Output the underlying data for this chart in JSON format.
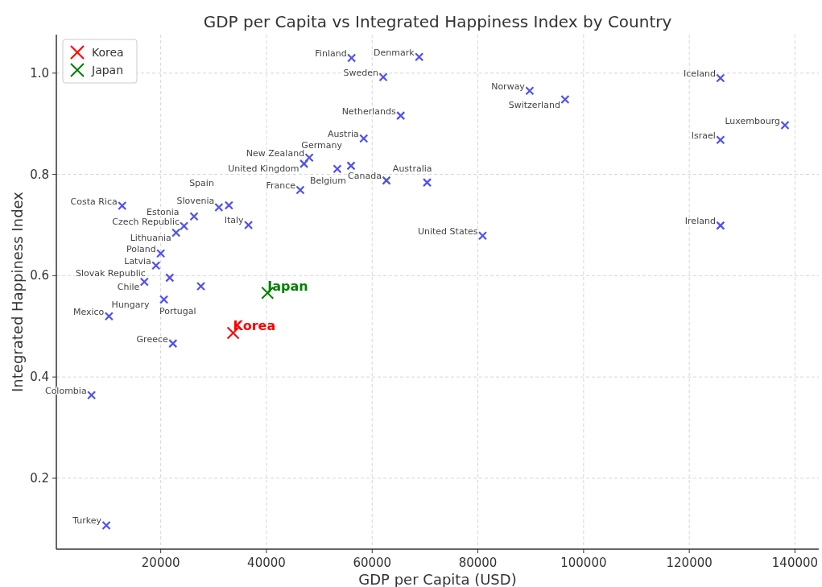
{
  "chart_data": {
    "type": "scatter",
    "title": "GDP per Capita vs Integrated Happiness Index by Country",
    "xlabel": "GDP per Capita (USD)",
    "ylabel": "Integrated Happiness Index",
    "xlim": [
      250,
      144500
    ],
    "ylim": [
      0.06,
      1.076
    ],
    "xticks": [
      20000,
      40000,
      60000,
      80000,
      100000,
      120000,
      140000
    ],
    "yticks": [
      {
        "value": 0.2,
        "label": "0.2"
      },
      {
        "value": 0.4,
        "label": "0.4"
      },
      {
        "value": 0.6,
        "label": "0.6"
      },
      {
        "value": 0.8,
        "label": "0.8"
      },
      {
        "value": 1.0,
        "label": "1.0"
      }
    ],
    "grid": true,
    "legend": "top left",
    "marker": "cross",
    "series": [
      {
        "color": "#5050f0",
        "x": [
          56100,
          68900,
          62100,
          65400,
          58400,
          48100,
          47100,
          53400,
          56000,
          62700,
          70400,
          46400,
          89800,
          96500,
          80900,
          125900,
          138100,
          125900,
          125900,
          12700,
          32900,
          31000,
          26300,
          24400,
          22900,
          36600,
          20000,
          19100,
          21700,
          16900,
          27600,
          20600,
          10200,
          22300,
          6900,
          9700
        ],
        "values": [
          1.03,
          1.032,
          0.992,
          0.916,
          0.871,
          0.833,
          0.821,
          0.811,
          0.817,
          0.788,
          0.784,
          0.769,
          0.965,
          0.948,
          0.679,
          0.99,
          0.897,
          0.868,
          0.699,
          0.738,
          0.739,
          0.735,
          0.717,
          0.698,
          0.685,
          0.7,
          0.644,
          0.62,
          0.596,
          0.588,
          0.579,
          0.553,
          0.52,
          0.466,
          0.364,
          0.107
        ]
      },
      {
        "name": "Korea",
        "color": "#ff0000",
        "x": [
          33700
        ],
        "values": [
          0.487
        ]
      },
      {
        "name": "Japan",
        "color": "#008000",
        "x": [
          40200
        ],
        "values": [
          0.566
        ]
      }
    ],
    "annotations": [
      {
        "text": "Finland",
        "x": 56100,
        "y": 1.03
      },
      {
        "text": "Denmark",
        "x": 68900,
        "y": 1.032
      },
      {
        "text": "Sweden",
        "x": 62100,
        "y": 0.992
      },
      {
        "text": "Netherlands",
        "x": 65400,
        "y": 0.916
      },
      {
        "text": "Austria",
        "x": 58400,
        "y": 0.871
      },
      {
        "text": "New Zealand",
        "x": 48100,
        "y": 0.833
      },
      {
        "text": "United Kingdom",
        "x": 47100,
        "y": 0.821
      },
      {
        "text": "Germany",
        "x": 53400,
        "y": 0.811
      },
      {
        "text": "Belgium",
        "x": 56000,
        "y": 0.817
      },
      {
        "text": "Canada",
        "x": 62700,
        "y": 0.788
      },
      {
        "text": "Australia",
        "x": 70400,
        "y": 0.784
      },
      {
        "text": "France",
        "x": 46400,
        "y": 0.769
      },
      {
        "text": "Norway",
        "x": 89800,
        "y": 0.965
      },
      {
        "text": "Switzerland",
        "x": 96500,
        "y": 0.948
      },
      {
        "text": "United States",
        "x": 80900,
        "y": 0.679
      },
      {
        "text": "Iceland",
        "x": 125900,
        "y": 0.99
      },
      {
        "text": "Luxembourg",
        "x": 138100,
        "y": 0.897
      },
      {
        "text": "Israel",
        "x": 125900,
        "y": 0.868
      },
      {
        "text": "Ireland",
        "x": 125900,
        "y": 0.699
      },
      {
        "text": "Costa Rica",
        "x": 12700,
        "y": 0.738
      },
      {
        "text": "Slovenia",
        "x": 32900,
        "y": 0.739
      },
      {
        "text": "Spain",
        "x": 31000,
        "y": 0.735
      },
      {
        "text": "Czech Republic",
        "x": 26300,
        "y": 0.717
      },
      {
        "text": "Estonia",
        "x": 24400,
        "y": 0.698
      },
      {
        "text": "Lithuania",
        "x": 22900,
        "y": 0.685
      },
      {
        "text": "Italy",
        "x": 36600,
        "y": 0.7
      },
      {
        "text": "Poland",
        "x": 20000,
        "y": 0.644
      },
      {
        "text": "Latvia",
        "x": 19100,
        "y": 0.62
      },
      {
        "text": "Slovak Republic",
        "x": 21700,
        "y": 0.596
      },
      {
        "text": "Chile",
        "x": 16900,
        "y": 0.588
      },
      {
        "text": "Portugal",
        "x": 27600,
        "y": 0.579
      },
      {
        "text": "Hungary",
        "x": 20600,
        "y": 0.553
      },
      {
        "text": "Mexico",
        "x": 10200,
        "y": 0.52
      },
      {
        "text": "Greece",
        "x": 22300,
        "y": 0.466
      },
      {
        "text": "Colombia",
        "x": 6900,
        "y": 0.364
      },
      {
        "text": "Turkey",
        "x": 9700,
        "y": 0.107
      },
      {
        "text": "Korea",
        "x": 33700,
        "y": 0.487
      },
      {
        "text": "Japan",
        "x": 40200,
        "y": 0.566
      }
    ]
  }
}
